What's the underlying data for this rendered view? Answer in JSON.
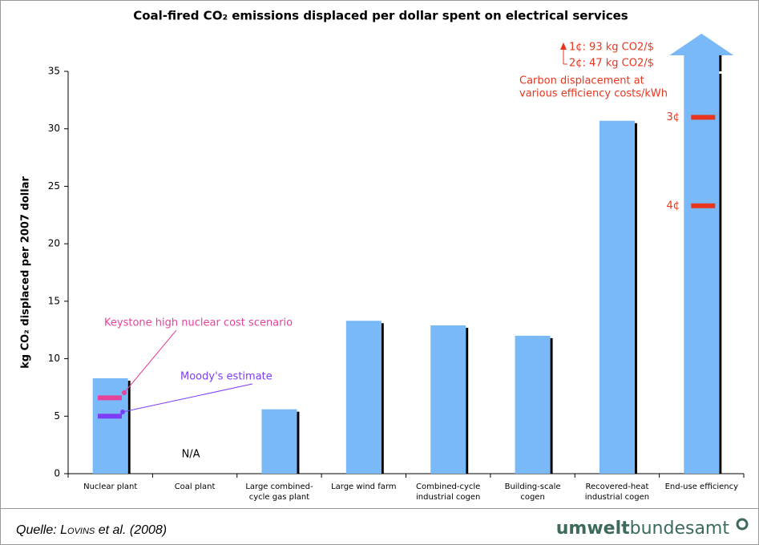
{
  "chart_data": {
    "type": "bar",
    "title": "Coal-fired CO₂ emissions displaced per dollar spent on electrical services",
    "y_label": "kg CO₂ displaced per 2007 dollar",
    "categories": [
      [
        "Nuclear plant"
      ],
      [
        "Coal plant"
      ],
      [
        "Large combined-",
        "cycle gas plant"
      ],
      [
        "Large wind farm"
      ],
      [
        "Combined-cycle",
        "industrial cogen"
      ],
      [
        "Building-scale",
        "cogen"
      ],
      [
        "Recovered-heat",
        "industrial cogen"
      ],
      [
        "End-use efficiency"
      ]
    ],
    "values": [
      8.3,
      null,
      5.6,
      13.3,
      12.9,
      12.0,
      30.7,
      35
    ],
    "color": "#79b9f8",
    "ylim": [
      0,
      35
    ],
    "yticks": [
      0,
      5,
      10,
      15,
      20,
      25,
      30,
      35
    ],
    "grid": false,
    "na_label": "N/A",
    "markers": [
      {
        "label": "Keystone high nuclear cost scenario",
        "value": 6.6,
        "color": "#e8419a"
      },
      {
        "label": "Moody's estimate",
        "value": 5.0,
        "color": "#7d3cf5"
      },
      {
        "label": "3¢",
        "value": 31.0,
        "color": "#e8351e"
      },
      {
        "label": "4¢",
        "value": 23.3,
        "color": "#e8351e"
      }
    ],
    "notes": [
      "1¢: 93 kg CO2/$",
      "2¢: 47 kg CO2/$",
      "Carbon displacement at",
      "various efficiency costs/kWh"
    ]
  },
  "footer": {
    "source_prefix": "Quelle: ",
    "source_author": "Lovins",
    "source_rest": " et al. (2008)",
    "logo_bold": "umwelt",
    "logo_rest": "bundesamt"
  }
}
